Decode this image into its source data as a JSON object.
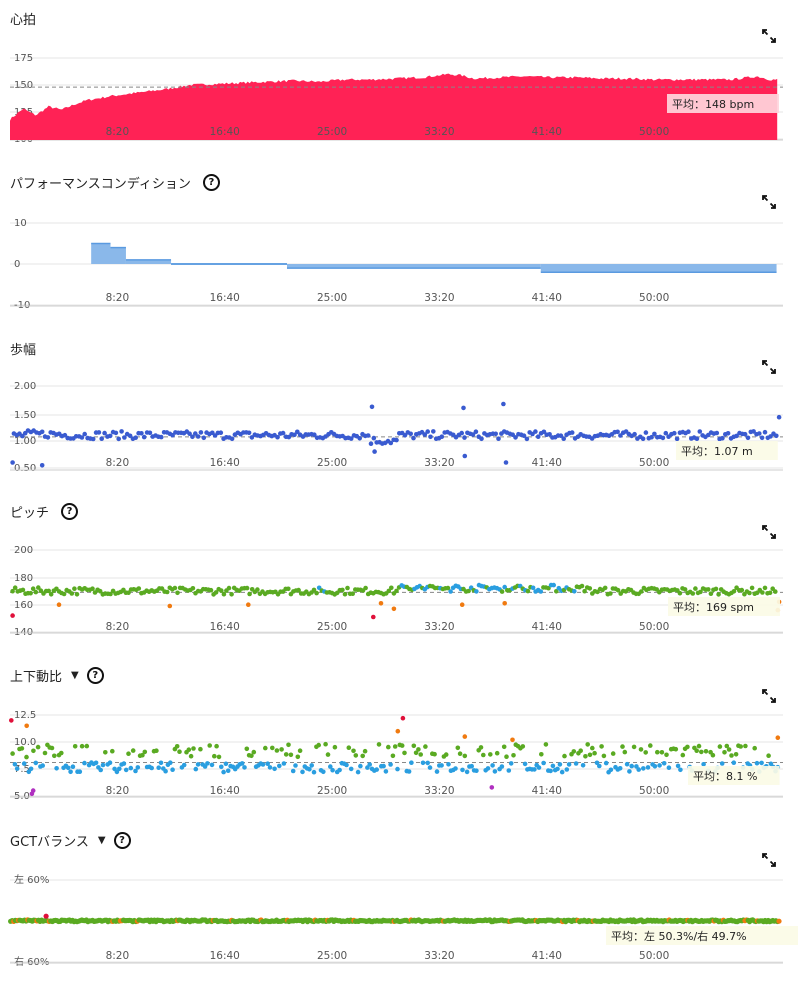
{
  "x_ticks": [
    "8:20",
    "16:40",
    "25:00",
    "33:20",
    "41:40",
    "50:00"
  ],
  "colors": {
    "hr_fill": "#ff2255",
    "pc_fill": "#8ab8ea",
    "pc_line": "#5a9ae0",
    "stride": "#3a5bd0",
    "green": "#5aaa22",
    "blue": "#2a9ee0",
    "orange": "#f07a10",
    "red": "#e0103a",
    "purple": "#b030c0",
    "grid": "#e6e6e6",
    "axis": "#cccccc",
    "dash": "#888888"
  },
  "panels": {
    "heart_rate": {
      "title": "心拍",
      "y_ticks": [
        "175",
        "150",
        "125",
        "100"
      ],
      "avg_label": "平均：148 bpm",
      "icon": "expand-icon"
    },
    "performance": {
      "title": "パフォーマンスコンディション",
      "help": "?",
      "y_ticks": [
        "10",
        "0",
        "-10"
      ],
      "icon": "expand-icon"
    },
    "stride": {
      "title": "歩幅",
      "y_ticks": [
        "2.00",
        "1.50",
        "1.00",
        "0.50"
      ],
      "avg_label": "平均：1.07 m",
      "icon": "expand-icon"
    },
    "cadence": {
      "title": "ピッチ",
      "help": "?",
      "y_ticks": [
        "200",
        "180",
        "160",
        "140"
      ],
      "avg_label": "平均：169 spm",
      "icon": "expand-icon"
    },
    "vertical_ratio": {
      "title": "上下動比",
      "dropdown": "▼",
      "help": "?",
      "y_ticks": [
        "12.5",
        "10.0",
        "7.5",
        "5.0"
      ],
      "avg_label": "平均：8.1 %",
      "icon": "expand-icon"
    },
    "gct_balance": {
      "title": "GCTバランス",
      "dropdown": "▼",
      "help": "?",
      "y_ticks": [
        "左 60%",
        "右 60%"
      ],
      "avg_label": "平均：左 50.3%/右 49.7%",
      "icon": "expand-icon"
    }
  },
  "chart_data": [
    {
      "type": "area",
      "ylim": [
        100,
        175
      ],
      "avg": 148,
      "x_minutes": [
        0,
        1,
        2,
        3,
        4,
        5,
        6,
        8,
        10,
        12,
        14,
        16,
        18,
        20,
        22,
        24,
        26,
        28,
        30,
        32,
        34,
        35,
        36,
        38,
        40,
        42,
        44,
        46,
        48,
        50,
        52,
        54,
        56,
        58,
        59
      ],
      "values": [
        118,
        128,
        122,
        130,
        127,
        132,
        136,
        140,
        143,
        146,
        150,
        151,
        152,
        153,
        154,
        153,
        155,
        155,
        156,
        157,
        160,
        159,
        156,
        157,
        158,
        157,
        157,
        156,
        156,
        155,
        155,
        155,
        155,
        158,
        155
      ]
    },
    {
      "type": "area",
      "ylim": [
        -10,
        10
      ],
      "segments_minutes": [
        [
          6.3,
          7.8
        ],
        [
          7.8,
          9.0
        ],
        [
          9.0,
          12.5
        ],
        [
          12.5,
          21.5
        ],
        [
          21.5,
          41.2
        ],
        [
          41.2,
          59.5
        ]
      ],
      "segment_values": [
        5,
        4,
        1,
        0,
        -1,
        -2
      ]
    },
    {
      "type": "scatter",
      "ylim": [
        0.5,
        2.0
      ],
      "avg": 1.07,
      "baseline": 1.1,
      "outliers_minutes": [
        [
          0.2,
          0.6
        ],
        [
          2.5,
          0.55
        ],
        [
          28.1,
          1.62
        ],
        [
          28.3,
          0.8
        ],
        [
          35.2,
          1.6
        ],
        [
          35.3,
          0.72
        ],
        [
          38.3,
          1.67
        ],
        [
          38.5,
          0.6
        ],
        [
          59.7,
          1.43
        ]
      ]
    },
    {
      "type": "scatter",
      "ylim": [
        140,
        200
      ],
      "avg": 169,
      "baseline": 170,
      "outliers_minutes": [
        [
          0.2,
          152
        ],
        [
          3.8,
          160
        ],
        [
          12.4,
          159
        ],
        [
          18.5,
          160
        ],
        [
          28.2,
          151
        ],
        [
          28.8,
          161
        ],
        [
          29.8,
          157
        ],
        [
          35.1,
          160
        ],
        [
          38.4,
          161
        ],
        [
          59.6,
          156
        ],
        [
          59.7,
          162
        ]
      ]
    },
    {
      "type": "scatter",
      "ylim": [
        5.0,
        12.5
      ],
      "avg": 8.1,
      "outliers_minutes": [
        [
          0.1,
          12.0
        ],
        [
          1.3,
          11.5
        ],
        [
          1.7,
          5.2
        ],
        [
          1.8,
          5.5
        ],
        [
          30.1,
          11.0
        ],
        [
          30.5,
          12.2
        ],
        [
          35.3,
          10.5
        ],
        [
          37.4,
          5.8
        ],
        [
          39.0,
          10.2
        ],
        [
          59.6,
          10.4
        ]
      ]
    },
    {
      "type": "scatter",
      "ylim": [
        -60,
        60
      ],
      "avg_left": 50.3,
      "avg_right": 49.7,
      "outliers_minutes": [
        [
          2.8,
          7
        ]
      ]
    }
  ]
}
